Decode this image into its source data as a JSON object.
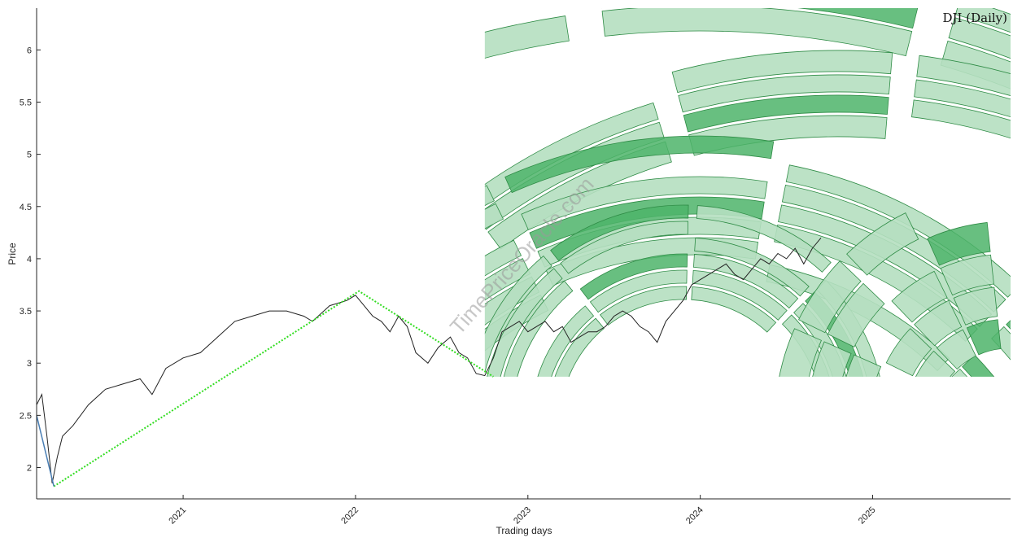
{
  "chart_data": {
    "type": "line",
    "title": "DJI (Daily)",
    "xlabel": "Trading days",
    "ylabel": "Price",
    "watermark": "TimePriceOracle.com",
    "xlim": [
      2020.15,
      2025.8
    ],
    "ylim": [
      1.7,
      6.4
    ],
    "x_ticks": [
      2021,
      2022,
      2023,
      2024,
      2025
    ],
    "x_tick_labels": [
      "2021",
      "2022",
      "2023",
      "2024",
      "2025"
    ],
    "y_ticks": [
      2,
      2.5,
      3,
      3.5,
      4,
      4.5,
      5,
      5.5,
      6
    ],
    "y_tick_labels": [
      "2",
      "2.5",
      "3",
      "3.5",
      "4",
      "4.5",
      "5",
      "5.5",
      "6"
    ],
    "grid": false,
    "colors": {
      "price": "#222222",
      "trend": "#33dd22",
      "initial_drop": "#4a7fb5",
      "band_fill_light": "#b5dfc0",
      "band_fill_dark": "#4eb46a",
      "band_stroke": "#2e8b45"
    },
    "series": [
      {
        "style": "price",
        "x": [
          2020.15,
          2020.18,
          2020.21,
          2020.24,
          2020.27,
          2020.3,
          2020.36,
          2020.45,
          2020.55,
          2020.65,
          2020.75,
          2020.82,
          2020.9,
          2021.0,
          2021.1,
          2021.2,
          2021.3,
          2021.4,
          2021.5,
          2021.6,
          2021.7,
          2021.75,
          2021.85,
          2021.95,
          2022.0,
          2022.05,
          2022.1,
          2022.15,
          2022.2,
          2022.25,
          2022.3,
          2022.35,
          2022.42,
          2022.48,
          2022.55,
          2022.6,
          2022.65,
          2022.7,
          2022.75,
          2022.8,
          2022.85,
          2022.9,
          2022.95,
          2023.0,
          2023.05,
          2023.1,
          2023.15,
          2023.2,
          2023.25,
          2023.3,
          2023.35,
          2023.4,
          2023.45,
          2023.5,
          2023.55,
          2023.6,
          2023.65,
          2023.7,
          2023.75,
          2023.8,
          2023.85,
          2023.9,
          2023.95,
          2024.0,
          2024.05,
          2024.1,
          2024.15,
          2024.2,
          2024.25,
          2024.3,
          2024.35,
          2024.4,
          2024.45,
          2024.5,
          2024.55,
          2024.6,
          2024.65,
          2024.7
        ],
        "y": [
          2.6,
          2.7,
          2.3,
          1.85,
          2.1,
          2.3,
          2.4,
          2.6,
          2.75,
          2.8,
          2.85,
          2.7,
          2.95,
          3.05,
          3.1,
          3.25,
          3.4,
          3.45,
          3.5,
          3.5,
          3.45,
          3.4,
          3.55,
          3.6,
          3.65,
          3.55,
          3.45,
          3.4,
          3.3,
          3.45,
          3.35,
          3.1,
          3.0,
          3.15,
          3.25,
          3.1,
          3.05,
          2.9,
          2.88,
          3.05,
          3.3,
          3.35,
          3.4,
          3.3,
          3.35,
          3.4,
          3.3,
          3.35,
          3.2,
          3.25,
          3.3,
          3.3,
          3.35,
          3.45,
          3.5,
          3.45,
          3.35,
          3.3,
          3.2,
          3.4,
          3.5,
          3.6,
          3.75,
          3.8,
          3.85,
          3.9,
          3.95,
          3.85,
          3.8,
          3.9,
          4.0,
          3.95,
          4.05,
          4.0,
          4.1,
          3.95,
          4.1,
          4.2
        ]
      },
      {
        "style": "trend",
        "x": [
          2020.25,
          2022.02,
          2022.8
        ],
        "y": [
          1.82,
          3.69,
          2.87
        ]
      },
      {
        "style": "initial_drop",
        "x": [
          2020.15,
          2020.25
        ],
        "y": [
          2.5,
          1.82
        ]
      }
    ]
  }
}
